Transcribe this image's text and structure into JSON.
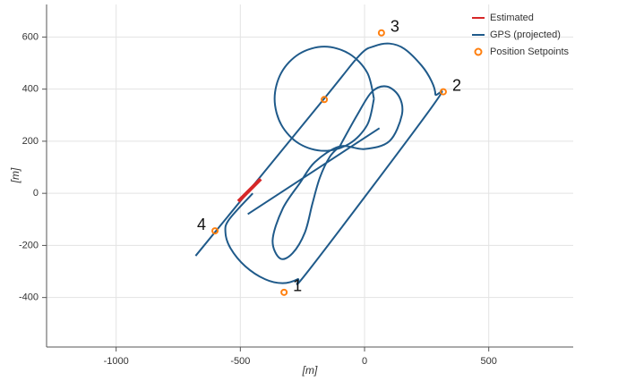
{
  "chart_data": {
    "type": "line",
    "x_label": "[m]",
    "y_label": "[m]",
    "xlim": [
      -1280,
      840
    ],
    "ylim": [
      -590,
      725
    ],
    "xticks": [
      -1000,
      -500,
      0,
      500
    ],
    "yticks": [
      -400,
      -200,
      0,
      200,
      400,
      600
    ],
    "grid": true,
    "legend": "top-right",
    "series": [
      {
        "name": "Estimated",
        "color": "#d62728",
        "x": [
          -508,
          -418
        ],
        "y": [
          -31,
          55
        ]
      },
      {
        "name": "GPS (projected)",
        "color": "#1f5a8a",
        "x": [
          -680,
          -162,
          -20,
          40,
          100,
          160,
          230,
          270,
          285,
          270,
          -220,
          -270,
          -330,
          -400,
          -480,
          -540,
          -560,
          -545,
          -450,
          null,
          38,
          11,
          -62,
          -162,
          -262,
          -335,
          -362,
          -335,
          -262,
          -162,
          -62,
          11,
          38,
          null,
          -470,
          60,
          null,
          -100,
          -30,
          30,
          90,
          140,
          150,
          100,
          0,
          -100,
          -200,
          -260,
          -330,
          -370,
          -340,
          -290,
          -240,
          -210,
          -180,
          -140,
          -100
        ],
        "y": [
          -240,
          364,
          530,
          565,
          575,
          555,
          490,
          430,
          380,
          330,
          -290,
          -330,
          -345,
          -330,
          -280,
          -210,
          -150,
          -100,
          0,
          null,
          363,
          463,
          536,
          563,
          536,
          463,
          363,
          263,
          190,
          163,
          190,
          263,
          363,
          null,
          -80,
          250,
          null,
          180,
          300,
          390,
          410,
          370,
          300,
          200,
          170,
          180,
          120,
          40,
          -60,
          -180,
          -250,
          -230,
          -150,
          -40,
          60,
          140,
          180
        ]
      },
      {
        "name": "Position Setpoints",
        "color": "#ff7f0e",
        "type": "scatter",
        "x": [
          -324,
          317,
          68,
          -602,
          -162
        ],
        "y": [
          -380,
          390,
          616,
          -144,
          360
        ],
        "labels": [
          "1",
          "2",
          "3",
          "4",
          null
        ]
      }
    ]
  }
}
